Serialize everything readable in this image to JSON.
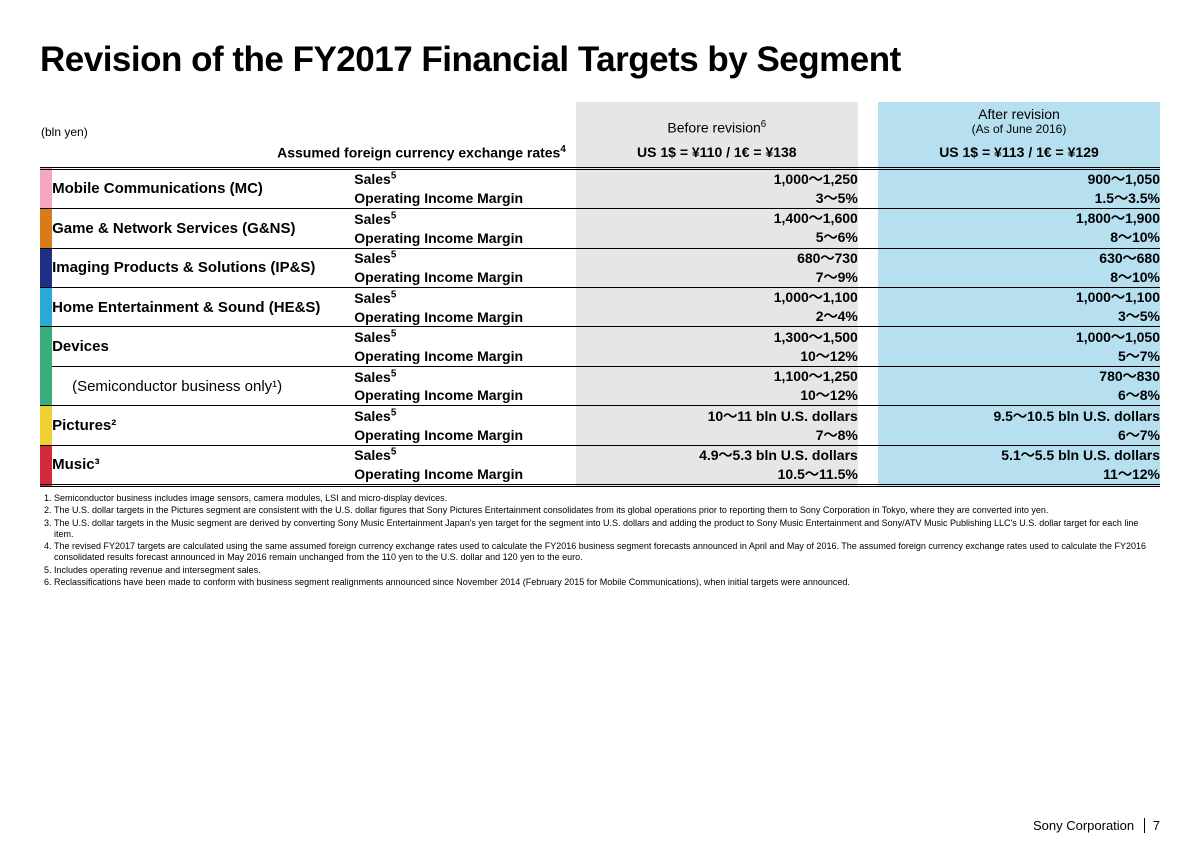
{
  "title": "Revision of the FY2017 Financial Targets by Segment",
  "unit_label": "(bln yen)",
  "assumed_label": "Assumed foreign currency exchange rates",
  "assumed_sup": "4",
  "header_before": "Before revision",
  "header_before_sup": "6",
  "header_after": "After revision",
  "header_after_sub": "(As of June 2016)",
  "rate_before": "US 1$ = ¥110 / 1€ = ¥138",
  "rate_after": "US 1$ = ¥113 / 1€ = ¥129",
  "metric_sales": "Sales",
  "metric_sales_sup": "5",
  "metric_oim": "Operating Income Margin",
  "colors": {
    "before_bg": "#e6e6e6",
    "after_bg": "#b6dff0"
  },
  "segments": [
    {
      "name": "Mobile Communications (MC)",
      "color": "#f4a8c0",
      "before_sales": "1,000～1,250",
      "before_oim": "3～5%",
      "after_sales": "900～1,050",
      "after_oim": "1.5～3.5%"
    },
    {
      "name": "Game & Network Services (G&NS)",
      "color": "#d97b1a",
      "before_sales": "1,400～1,600",
      "before_oim": "5～6%",
      "after_sales": "1,800～1,900",
      "after_oim": "8～10%"
    },
    {
      "name": "Imaging Products & Solutions (IP&S)",
      "color": "#1f2f85",
      "before_sales": "680～730",
      "before_oim": "7～9%",
      "after_sales": "630～680",
      "after_oim": "8～10%"
    },
    {
      "name": "Home Entertainment & Sound (HE&S)",
      "color": "#2aa8d6",
      "before_sales": "1,000～1,100",
      "before_oim": "2～4%",
      "after_sales": "1,000～1,100",
      "after_oim": "3～5%"
    },
    {
      "name": "Devices",
      "color": "#3aae7a",
      "before_sales": "1,300～1,500",
      "before_oim": "10～12%",
      "after_sales": "1,000～1,050",
      "after_oim": "5～7%"
    },
    {
      "name": "(Semiconductor business only¹)",
      "sub": true,
      "color": "#3aae7a",
      "before_sales": "1,100～1,250",
      "before_oim": "10～12%",
      "after_sales": "780～830",
      "after_oim": "6～8%"
    },
    {
      "name": "Pictures²",
      "color": "#f0d034",
      "before_sales": "10～11 bln U.S. dollars",
      "before_oim": "7～8%",
      "after_sales": "9.5～10.5 bln U.S. dollars",
      "after_oim": "6～7%"
    },
    {
      "name": "Music³",
      "color": "#d12a3a",
      "before_sales": "4.9～5.3 bln U.S. dollars",
      "before_oim": "10.5～11.5%",
      "after_sales": "5.1～5.5 bln U.S. dollars",
      "after_oim": "11～12%"
    }
  ],
  "footnotes": [
    "Semiconductor business includes image sensors, camera modules, LSI and micro-display devices.",
    "The U.S. dollar targets in the Pictures segment are consistent with the U.S. dollar figures that Sony Pictures Entertainment consolidates from its global operations prior to reporting them to Sony Corporation in Tokyo, where they are converted into yen.",
    "The U.S. dollar targets in the Music segment are derived by converting Sony Music Entertainment Japan's yen target for the segment into U.S. dollars and adding the product to Sony Music Entertainment and Sony/ATV Music Publishing LLC's U.S. dollar target for each line item.",
    "The revised FY2017 targets are calculated using the same assumed foreign currency exchange rates used to calculate the FY2016 business segment forecasts announced in April and May of 2016. The assumed foreign currency exchange rates used to calculate the FY2016 consolidated results forecast announced in May 2016 remain unchanged from the 110 yen to the U.S. dollar and 120 yen to the euro.",
    "Includes operating revenue and intersegment sales.",
    "Reclassifications have been made to conform with business segment realignments announced since November 2014 (February 2015 for Mobile Communications), when initial targets were announced."
  ],
  "footer_company": "Sony Corporation",
  "footer_page": "7"
}
